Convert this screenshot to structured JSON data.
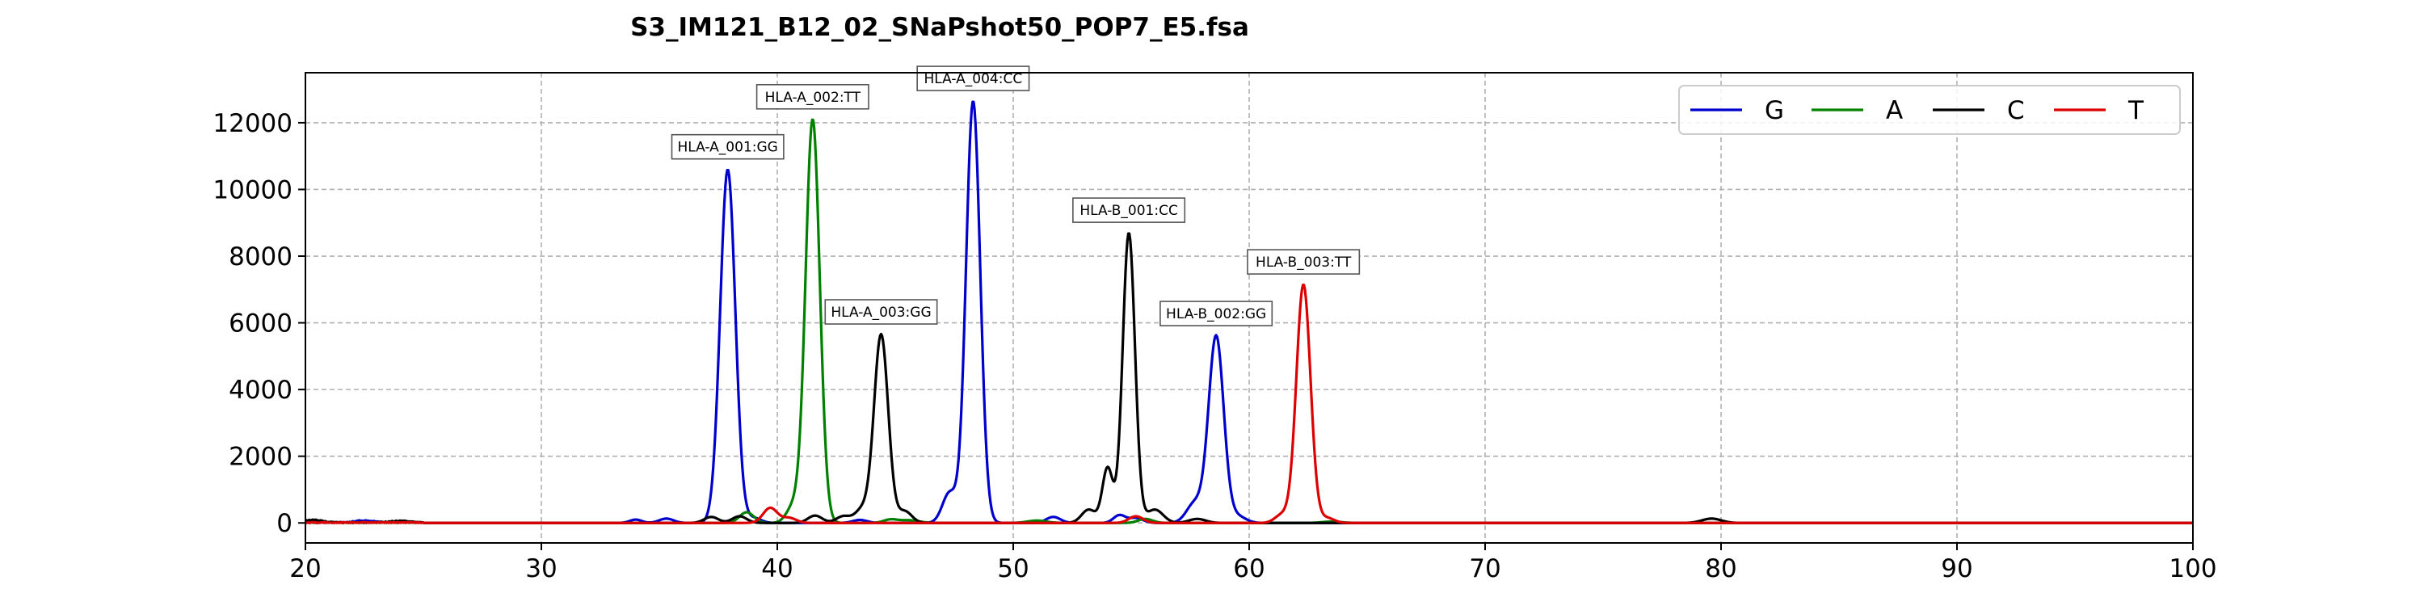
{
  "chart_data": {
    "type": "line",
    "title": "S3_IM121_B12_02_SNaPshot50_POP7_E5.fsa",
    "xlabel": "",
    "ylabel": "",
    "xlim": [
      20,
      100
    ],
    "ylim": [
      -600,
      13500
    ],
    "x_ticks": [
      20,
      30,
      40,
      50,
      60,
      70,
      80,
      90,
      100
    ],
    "y_ticks": [
      0,
      2000,
      4000,
      6000,
      8000,
      10000,
      12000
    ],
    "grid": true,
    "legend": {
      "placement": "top-right",
      "orientation": "horizontal"
    },
    "baseline_noise": [
      [
        20.3,
        80,
        "#000000"
      ],
      [
        22.5,
        60,
        "#0000cc"
      ],
      [
        24.0,
        50,
        "#000000"
      ],
      [
        79.6,
        130,
        "#000000"
      ],
      [
        63.5,
        40,
        "#008000"
      ],
      [
        45.6,
        80,
        "#008000"
      ],
      [
        51.0,
        70,
        "#008000"
      ]
    ],
    "series": [
      {
        "name": "G",
        "color": "#0000cc",
        "peaks": [
          [
            37.9,
            10600,
            0.32
          ],
          [
            48.3,
            12650,
            0.3
          ],
          [
            47.3,
            900,
            0.3
          ],
          [
            58.6,
            5600,
            0.32
          ],
          [
            57.7,
            600,
            0.35
          ],
          [
            34.0,
            100,
            0.25
          ],
          [
            35.3,
            130,
            0.3
          ],
          [
            39.0,
            150,
            0.3
          ],
          [
            43.5,
            90,
            0.3
          ],
          [
            51.7,
            180,
            0.3
          ],
          [
            54.5,
            230,
            0.25
          ],
          [
            55.2,
            150,
            0.3
          ],
          [
            59.5,
            200,
            0.35
          ]
        ]
      },
      {
        "name": "A",
        "color": "#008000",
        "peaks": [
          [
            41.5,
            12100,
            0.3
          ],
          [
            40.7,
            500,
            0.3
          ],
          [
            38.7,
            320,
            0.3
          ],
          [
            44.8,
            100,
            0.3
          ],
          [
            55.6,
            120,
            0.3
          ]
        ]
      },
      {
        "name": "C",
        "color": "#000000",
        "peaks": [
          [
            44.4,
            5650,
            0.3
          ],
          [
            43.6,
            400,
            0.3
          ],
          [
            45.4,
            350,
            0.3
          ],
          [
            54.9,
            8700,
            0.26
          ],
          [
            54.0,
            1650,
            0.22
          ],
          [
            53.2,
            400,
            0.3
          ],
          [
            37.2,
            180,
            0.3
          ],
          [
            38.4,
            200,
            0.3
          ],
          [
            41.6,
            220,
            0.3
          ],
          [
            42.8,
            200,
            0.3
          ],
          [
            56.0,
            400,
            0.35
          ],
          [
            57.8,
            120,
            0.35
          ]
        ]
      },
      {
        "name": "T",
        "color": "#dd0000",
        "peaks": [
          [
            62.3,
            7150,
            0.3
          ],
          [
            61.4,
            250,
            0.3
          ],
          [
            39.7,
            450,
            0.3
          ],
          [
            40.5,
            150,
            0.3
          ],
          [
            55.2,
            200,
            0.3
          ],
          [
            63.3,
            150,
            0.3
          ]
        ]
      }
    ],
    "annotations": [
      {
        "text": "HLA-A_001:GG",
        "x": 37.9,
        "y": 10600
      },
      {
        "text": "HLA-A_002:TT",
        "x": 41.5,
        "y": 12100
      },
      {
        "text": "HLA-A_003:GG",
        "x": 44.4,
        "y": 5650
      },
      {
        "text": "HLA-A_004:CC",
        "x": 48.3,
        "y": 12650
      },
      {
        "text": "HLA-B_001:CC",
        "x": 54.9,
        "y": 8700
      },
      {
        "text": "HLA-B_002:GG",
        "x": 58.6,
        "y": 5600
      },
      {
        "text": "HLA-B_003:TT",
        "x": 62.3,
        "y": 7150
      }
    ]
  }
}
